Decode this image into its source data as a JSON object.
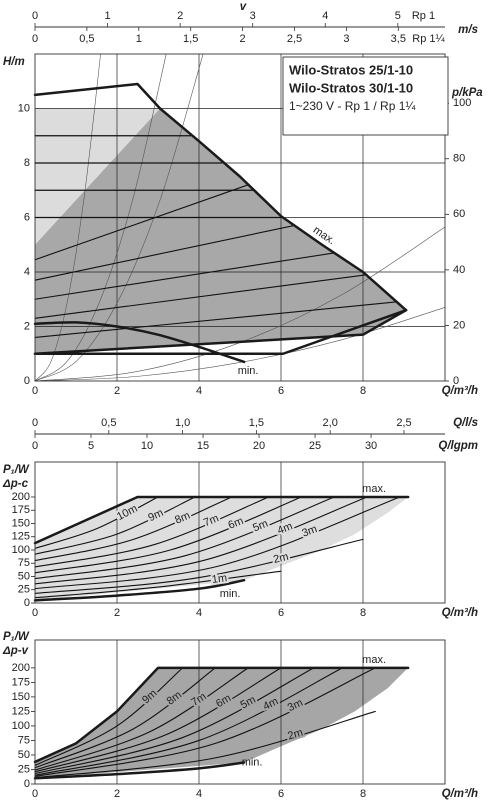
{
  "chart_data": [
    {
      "type": "line",
      "ylabel": "H/m",
      "y2label": "p/kPa",
      "xlabel": "Q/m³/h",
      "xlim": [
        0,
        10
      ],
      "xticks": [
        0,
        2,
        4,
        6,
        8
      ],
      "ylim": [
        0,
        12
      ],
      "yticks": [
        0,
        2,
        4,
        6,
        8,
        10
      ],
      "y2lim": [
        0,
        117.7
      ],
      "y2ticks": [
        0,
        20,
        40,
        60,
        80,
        100
      ],
      "grid": "both",
      "info": [
        "Wilo-Stratos 25/1-10",
        "Wilo-Stratos 30/1-10",
        "1~230 V - Rp 1 / Rp 1¼"
      ],
      "top_axes": [
        {
          "symbol": "v",
          "label": "m/s",
          "name": "Rp 1",
          "lim": [
            0,
            5.65
          ],
          "ticks": [
            0,
            1,
            2,
            3,
            4,
            5
          ],
          "side": "up"
        },
        {
          "name": "Rp 1¼",
          "lim": [
            0,
            3.95
          ],
          "ticks": [
            0,
            {
              "value": 0.5,
              "label": "0,5"
            },
            1,
            {
              "value": 1.5,
              "label": "1,5"
            },
            2,
            {
              "value": 2.5,
              "label": "2,5"
            },
            3,
            {
              "value": 3.5,
              "label": "3,5"
            }
          ],
          "side": "down"
        }
      ],
      "areas": [
        {
          "color": "#dcdcdc",
          "x": [
            0,
            3.05,
            0
          ],
          "values": [
            10,
            10,
            5
          ]
        },
        {
          "color": "#a8a8a8",
          "x": [
            0,
            3.05,
            4,
            5,
            6,
            7,
            8,
            9.05,
            8,
            0
          ],
          "values": [
            5,
            10,
            8.8,
            7.5,
            6.05,
            5.0,
            4.0,
            2.6,
            1.7,
            1.0
          ]
        }
      ],
      "series": [
        {
          "color": "#555",
          "width": 0.6,
          "smooth": true,
          "x": [
            0,
            0.4,
            0.8,
            1.2,
            1.6
          ],
          "values": [
            0,
            0.75,
            3,
            6.75,
            12
          ]
        },
        {
          "color": "#555",
          "width": 0.6,
          "smooth": true,
          "x": [
            0,
            0.8,
            1.6,
            2.4,
            3.2
          ],
          "values": [
            0,
            0.75,
            3,
            6.75,
            12
          ]
        },
        {
          "color": "#555",
          "width": 0.6,
          "smooth": true,
          "x": [
            0,
            1.025,
            2.05,
            3.075,
            4.1
          ],
          "values": [
            0,
            0.75,
            3,
            6.75,
            12
          ]
        },
        {
          "color": "#555",
          "width": 0.6,
          "smooth": true,
          "x": [
            0,
            2.5,
            5,
            7.5,
            10
          ],
          "values": [
            0,
            0.35,
            1.41,
            3.18,
            5.65
          ]
        },
        {
          "color": "#555",
          "width": 0.6,
          "smooth": true,
          "x": [
            0,
            2.5,
            5,
            7.5,
            10
          ],
          "values": [
            0,
            0.17,
            0.68,
            1.52,
            2.7
          ]
        },
        {
          "color": "#111",
          "width": 1.3,
          "x": [
            0,
            3.8
          ],
          "values": [
            9,
            9
          ]
        },
        {
          "color": "#111",
          "width": 1.3,
          "x": [
            0,
            4.55
          ],
          "values": [
            8,
            8
          ]
        },
        {
          "color": "#111",
          "width": 1.3,
          "x": [
            0,
            5.35
          ],
          "values": [
            7,
            7
          ]
        },
        {
          "color": "#111",
          "width": 1.3,
          "x": [
            0,
            6.05
          ],
          "values": [
            6,
            6
          ]
        },
        {
          "color": "#111",
          "width": 1.1,
          "x": [
            0,
            5.2
          ],
          "values": [
            4.45,
            7.2
          ]
        },
        {
          "color": "#111",
          "width": 1.1,
          "x": [
            0,
            6.3
          ],
          "values": [
            3.7,
            5.7
          ]
        },
        {
          "color": "#111",
          "width": 1.1,
          "x": [
            0,
            7.3
          ],
          "values": [
            3.0,
            4.7
          ]
        },
        {
          "color": "#111",
          "width": 1.1,
          "x": [
            0,
            8.1
          ],
          "values": [
            2.3,
            3.9
          ]
        },
        {
          "color": "#111",
          "width": 1.1,
          "x": [
            0,
            8.8
          ],
          "values": [
            1.6,
            2.9
          ]
        },
        {
          "color": "#1a1a1a",
          "width": 2.5,
          "x": [
            0,
            8,
            9.05
          ],
          "values": [
            1.0,
            1.7,
            2.6
          ]
        },
        {
          "color": "#1a1a1a",
          "width": 2.5,
          "x": [
            9.05,
            6.05,
            0
          ],
          "values": [
            2.6,
            1.0,
            1.0
          ]
        },
        {
          "name": "min.",
          "color": "#1a1a1a",
          "width": 2.5,
          "smooth": true,
          "x": [
            0,
            1,
            2,
            3,
            4,
            5.1
          ],
          "values": [
            2.1,
            2.15,
            2.0,
            1.7,
            1.25,
            0.7
          ]
        },
        {
          "name": "max.",
          "color": "#1a1a1a",
          "width": 2.5,
          "x": [
            0,
            2.5,
            3.05,
            4,
            5,
            6,
            7,
            8,
            9.05
          ],
          "values": [
            10.5,
            10.9,
            10,
            8.8,
            7.5,
            6.05,
            5.0,
            4.0,
            2.6
          ]
        }
      ]
    },
    {
      "type": "line",
      "ylabel": "P₁/W",
      "subtitle": "Δp-c",
      "xlabel": "Q/m³/h",
      "xlim": [
        0,
        10
      ],
      "xticks": [
        0,
        2,
        4,
        6,
        8
      ],
      "ylim": [
        0,
        266
      ],
      "yticks": [
        0,
        25,
        50,
        75,
        100,
        125,
        150,
        175,
        200
      ],
      "grid": "x",
      "top_axes": [
        {
          "label": "Q/l/s",
          "lim": [
            0,
            2.778
          ],
          "ticks": [
            0,
            {
              "value": 0.5,
              "label": "0,5"
            },
            {
              "value": 1,
              "label": "1,0"
            },
            {
              "value": 1.5,
              "label": "1,5"
            },
            {
              "value": 2,
              "label": "2,0"
            },
            {
              "value": 2.5,
              "label": "2,5"
            }
          ],
          "side": "up"
        },
        {
          "label": "Q/lgpm",
          "lim": [
            0,
            36.6
          ],
          "ticks": [
            0,
            5,
            10,
            15,
            20,
            25,
            30
          ],
          "side": "down"
        }
      ],
      "areas": [
        {
          "color": "#dedede",
          "x": [
            0,
            2.5,
            9.1,
            8.6,
            7.8,
            7,
            6,
            5.1,
            0
          ],
          "values": [
            113,
            200,
            200,
            170,
            130,
            100,
            70,
            43,
            5
          ]
        }
      ],
      "series": [
        {
          "name": "10m",
          "color": "#111",
          "width": 1.1,
          "smooth": true,
          "x": [
            0,
            1.5,
            3.0
          ],
          "values": [
            103,
            140,
            200
          ]
        },
        {
          "name": "9m",
          "color": "#111",
          "width": 1.1,
          "smooth": true,
          "x": [
            0,
            2,
            3.9
          ],
          "values": [
            92,
            130,
            200
          ]
        },
        {
          "name": "8m",
          "color": "#111",
          "width": 1.1,
          "smooth": true,
          "x": [
            0,
            2.4,
            4.8
          ],
          "values": [
            80,
            120,
            200
          ]
        },
        {
          "name": "7m",
          "color": "#111",
          "width": 1.1,
          "smooth": true,
          "x": [
            0,
            2.9,
            5.7
          ],
          "values": [
            68,
            110,
            200
          ]
        },
        {
          "name": "6m",
          "color": "#111",
          "width": 1.1,
          "smooth": true,
          "x": [
            0,
            3.3,
            6.5
          ],
          "values": [
            57,
            100,
            200
          ]
        },
        {
          "name": "5m",
          "color": "#111",
          "width": 1.1,
          "smooth": true,
          "x": [
            0,
            3.7,
            7.3
          ],
          "values": [
            46,
            90,
            200
          ]
        },
        {
          "name": "4m",
          "color": "#111",
          "width": 1.1,
          "smooth": true,
          "x": [
            0,
            4.1,
            8.1
          ],
          "values": [
            36,
            80,
            200
          ]
        },
        {
          "name": "3m",
          "color": "#111",
          "width": 1.1,
          "smooth": true,
          "x": [
            0,
            4.5,
            8.9
          ],
          "values": [
            27,
            70,
            200
          ]
        },
        {
          "name": "2m",
          "color": "#111",
          "width": 1.1,
          "smooth": true,
          "x": [
            0,
            4,
            8
          ],
          "values": [
            18,
            48,
            120
          ]
        },
        {
          "name": "1m",
          "color": "#111",
          "width": 1.1,
          "smooth": true,
          "x": [
            0,
            3,
            6
          ],
          "values": [
            10,
            30,
            60
          ]
        },
        {
          "name": "min.",
          "color": "#1a1a1a",
          "width": 2.5,
          "smooth": true,
          "x": [
            0,
            2,
            4,
            5.1
          ],
          "values": [
            5,
            14,
            27,
            43
          ]
        },
        {
          "name": "max.",
          "color": "#1a1a1a",
          "width": 2.5,
          "x": [
            0,
            2.5,
            9.1
          ],
          "values": [
            113,
            200,
            200
          ]
        }
      ]
    },
    {
      "type": "line",
      "ylabel": "P₁/W",
      "subtitle": "Δp-v",
      "xlabel": "Q/m³/h",
      "xlim": [
        0,
        10
      ],
      "xticks": [
        0,
        2,
        4,
        6,
        8
      ],
      "ylim": [
        0,
        248
      ],
      "yticks": [
        0,
        25,
        50,
        75,
        100,
        125,
        150,
        175,
        200
      ],
      "grid": "x",
      "areas": [
        {
          "color": "#a6a6a6",
          "x": [
            0,
            1,
            2,
            3,
            9.1,
            8.6,
            7.8,
            7,
            6,
            5.1,
            0
          ],
          "values": [
            38,
            70,
            125,
            200,
            200,
            165,
            125,
            95,
            65,
            37,
            10
          ]
        }
      ],
      "series": [
        {
          "name": "9m",
          "color": "#111",
          "width": 1.1,
          "smooth": true,
          "x": [
            0,
            2,
            3.6
          ],
          "values": [
            32,
            100,
            200
          ]
        },
        {
          "name": "8m",
          "color": "#111",
          "width": 1.1,
          "smooth": true,
          "x": [
            0,
            2.4,
            4.4
          ],
          "values": [
            28,
            95,
            200
          ]
        },
        {
          "name": "7m",
          "color": "#111",
          "width": 1.1,
          "smooth": true,
          "x": [
            0,
            2.8,
            5.2
          ],
          "values": [
            24,
            90,
            200
          ]
        },
        {
          "name": "6m",
          "color": "#111",
          "width": 1.1,
          "smooth": true,
          "x": [
            0,
            3.2,
            6.0
          ],
          "values": [
            21,
            85,
            200
          ]
        },
        {
          "name": "5m",
          "color": "#111",
          "width": 1.1,
          "smooth": true,
          "x": [
            0,
            3.6,
            6.8
          ],
          "values": [
            18,
            80,
            200
          ]
        },
        {
          "name": "4m",
          "color": "#111",
          "width": 1.1,
          "smooth": true,
          "x": [
            0,
            4,
            7.5
          ],
          "values": [
            15,
            75,
            200
          ]
        },
        {
          "name": "3m",
          "color": "#111",
          "width": 1.1,
          "smooth": true,
          "x": [
            0,
            4.4,
            8.3
          ],
          "values": [
            13,
            70,
            200
          ]
        },
        {
          "name": "2m",
          "color": "#111",
          "width": 1.1,
          "smooth": true,
          "x": [
            0,
            4.4,
            8.3
          ],
          "values": [
            11,
            45,
            125
          ]
        },
        {
          "name": "min.",
          "color": "#1a1a1a",
          "width": 2.5,
          "smooth": true,
          "x": [
            0,
            2,
            4,
            5.1
          ],
          "values": [
            10,
            17,
            27,
            37
          ]
        },
        {
          "name": "max.",
          "color": "#1a1a1a",
          "width": 2.5,
          "x": [
            0,
            1,
            2,
            3,
            9.1
          ],
          "values": [
            38,
            70,
            125,
            200,
            200
          ]
        }
      ]
    }
  ]
}
